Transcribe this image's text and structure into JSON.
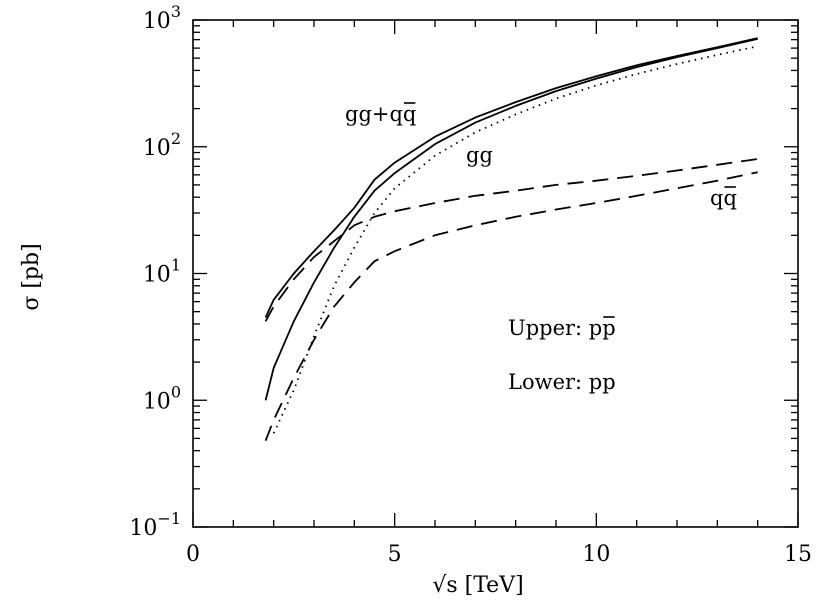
{
  "chart_data": {
    "type": "line",
    "title": "",
    "xlabel": "√s [TeV]",
    "ylabel": "σ [pb]",
    "xlim": [
      0,
      15
    ],
    "ylim": [
      0.1,
      1000
    ],
    "yscale": "log",
    "grid": false,
    "x_ticks": [
      {
        "value": 0,
        "label": "0"
      },
      {
        "value": 5,
        "label": "5"
      },
      {
        "value": 10,
        "label": "10"
      },
      {
        "value": 15,
        "label": "15"
      }
    ],
    "y_ticks": [
      {
        "value": 0.1,
        "base": "10",
        "exp": "−1"
      },
      {
        "value": 1,
        "base": "10",
        "exp": "0"
      },
      {
        "value": 10,
        "base": "10",
        "exp": "1"
      },
      {
        "value": 100,
        "base": "10",
        "exp": "2"
      },
      {
        "value": 1000,
        "base": "10",
        "exp": "3"
      }
    ],
    "annotations": {
      "total": "gg+qq",
      "gg": "gg",
      "qq": "qq",
      "upper_text": "Upper: pp",
      "lower_text": "Lower: pp"
    },
    "series": [
      {
        "style": "solid",
        "x": [
          1.8,
          2,
          2.5,
          3,
          3.5,
          4,
          4.5,
          5,
          6,
          7,
          8,
          9,
          10,
          11,
          12,
          13,
          14
        ],
        "y": [
          4.5,
          6.2,
          10,
          15,
          22,
          33,
          55,
          75,
          120,
          170,
          225,
          290,
          360,
          440,
          520,
          610,
          720
        ]
      },
      {
        "style": "solid",
        "x": [
          1.8,
          2,
          2.5,
          3,
          3.5,
          4,
          4.5,
          5,
          6,
          7,
          8,
          9,
          10,
          11,
          12,
          13,
          14
        ],
        "y": [
          1.0,
          1.8,
          4.2,
          8.5,
          16,
          28,
          45,
          62,
          105,
          155,
          210,
          275,
          345,
          425,
          510,
          600,
          710
        ]
      },
      {
        "style": "dotted",
        "x": [
          2,
          2.5,
          3,
          3.5,
          4,
          4.5,
          5,
          6,
          7,
          8,
          9,
          10,
          11,
          12,
          13,
          14
        ],
        "y": [
          0.55,
          1.2,
          3.2,
          8,
          16,
          30,
          47,
          85,
          130,
          180,
          240,
          305,
          375,
          450,
          530,
          620
        ]
      },
      {
        "style": "dashed",
        "x": [
          1.8,
          2,
          2.5,
          3,
          3.5,
          4,
          4.5,
          5,
          6,
          7,
          8,
          9,
          10,
          11,
          12,
          13,
          14
        ],
        "y": [
          4.2,
          5.5,
          9.0,
          13.5,
          18,
          24,
          28,
          31,
          36,
          41,
          45,
          50,
          54,
          59,
          65,
          72,
          80
        ]
      },
      {
        "style": "dashed",
        "x": [
          1.8,
          2,
          2.5,
          3,
          3.5,
          4,
          4.5,
          5,
          6,
          7,
          8,
          9,
          10,
          11,
          12,
          13,
          14
        ],
        "y": [
          0.48,
          0.7,
          1.5,
          3.0,
          5.5,
          8.5,
          12.5,
          15,
          20,
          24,
          28,
          32,
          36,
          41,
          47,
          54,
          63
        ]
      }
    ]
  }
}
